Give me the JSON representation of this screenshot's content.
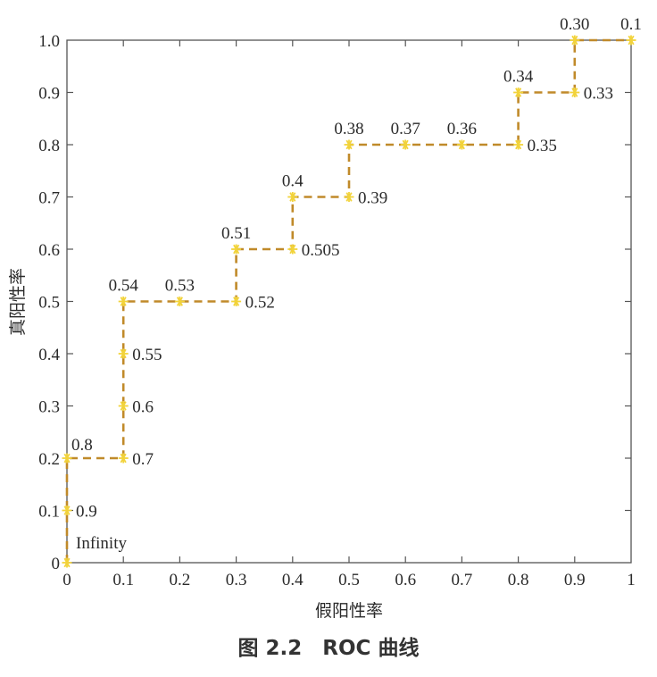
{
  "caption": "图 2.2　ROC 曲线",
  "chart_data": {
    "type": "line",
    "title": "",
    "xlabel": "假阳性率",
    "ylabel": "真阳性率",
    "xlim": [
      0,
      1
    ],
    "ylim": [
      0,
      1
    ],
    "grid": false,
    "line_color": "#c08a2a",
    "marker_color": "#f2d33a",
    "line_style": "dashed",
    "step": true,
    "x_ticks": [
      {
        "value": 0,
        "label": "0"
      },
      {
        "value": 0.1,
        "label": "0.1"
      },
      {
        "value": 0.2,
        "label": "0.2"
      },
      {
        "value": 0.3,
        "label": "0.3"
      },
      {
        "value": 0.4,
        "label": "0.4"
      },
      {
        "value": 0.5,
        "label": "0.5"
      },
      {
        "value": 0.6,
        "label": "0.6"
      },
      {
        "value": 0.7,
        "label": "0.7"
      },
      {
        "value": 0.8,
        "label": "0.8"
      },
      {
        "value": 0.9,
        "label": "0.9"
      },
      {
        "value": 1,
        "label": "1"
      }
    ],
    "y_ticks": [
      {
        "value": 0,
        "label": "0"
      },
      {
        "value": 0.1,
        "label": "0.1"
      },
      {
        "value": 0.2,
        "label": "0.2"
      },
      {
        "value": 0.3,
        "label": "0.3"
      },
      {
        "value": 0.4,
        "label": "0.4"
      },
      {
        "value": 0.5,
        "label": "0.5"
      },
      {
        "value": 0.6,
        "label": "0.6"
      },
      {
        "value": 0.7,
        "label": "0.7"
      },
      {
        "value": 0.8,
        "label": "0.8"
      },
      {
        "value": 0.9,
        "label": "0.9"
      },
      {
        "value": 1.0,
        "label": "1.0"
      }
    ],
    "points": [
      {
        "x": 0,
        "y": 0,
        "label": "Infinity",
        "label_pos": "upper-right"
      },
      {
        "x": 0,
        "y": 0.1,
        "label": "0.9",
        "label_pos": "right"
      },
      {
        "x": 0,
        "y": 0.2,
        "label": "0.8",
        "label_pos": "upper-right"
      },
      {
        "x": 0.1,
        "y": 0.2,
        "label": "0.7",
        "label_pos": "right"
      },
      {
        "x": 0.1,
        "y": 0.3,
        "label": "0.6",
        "label_pos": "right"
      },
      {
        "x": 0.1,
        "y": 0.4,
        "label": "0.55",
        "label_pos": "right"
      },
      {
        "x": 0.1,
        "y": 0.5,
        "label": "0.54",
        "label_pos": "above"
      },
      {
        "x": 0.2,
        "y": 0.5,
        "label": "0.53",
        "label_pos": "above"
      },
      {
        "x": 0.3,
        "y": 0.5,
        "label": "0.52",
        "label_pos": "right"
      },
      {
        "x": 0.3,
        "y": 0.6,
        "label": "0.51",
        "label_pos": "above"
      },
      {
        "x": 0.4,
        "y": 0.6,
        "label": "0.505",
        "label_pos": "right"
      },
      {
        "x": 0.4,
        "y": 0.7,
        "label": "0.4",
        "label_pos": "above"
      },
      {
        "x": 0.5,
        "y": 0.7,
        "label": "0.39",
        "label_pos": "right"
      },
      {
        "x": 0.5,
        "y": 0.8,
        "label": "0.38",
        "label_pos": "above"
      },
      {
        "x": 0.6,
        "y": 0.8,
        "label": "0.37",
        "label_pos": "above"
      },
      {
        "x": 0.7,
        "y": 0.8,
        "label": "0.36",
        "label_pos": "above"
      },
      {
        "x": 0.8,
        "y": 0.8,
        "label": "0.35",
        "label_pos": "right"
      },
      {
        "x": 0.8,
        "y": 0.9,
        "label": "0.34",
        "label_pos": "above"
      },
      {
        "x": 0.9,
        "y": 0.9,
        "label": "0.33",
        "label_pos": "right"
      },
      {
        "x": 0.9,
        "y": 1.0,
        "label": "0.30",
        "label_pos": "above"
      },
      {
        "x": 1.0,
        "y": 1.0,
        "label": "0.1",
        "label_pos": "above"
      }
    ]
  }
}
